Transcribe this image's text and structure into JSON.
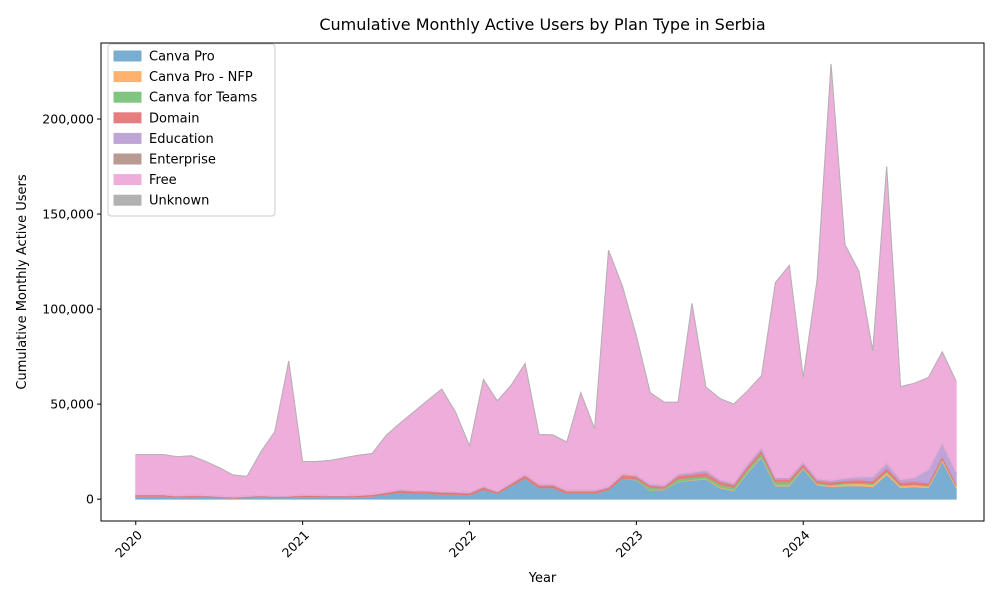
{
  "chart_data": {
    "type": "area",
    "stacked": true,
    "title": "Cumulative Monthly Active Users by Plan Type in Serbia",
    "xlabel": "Year",
    "ylabel": "Cumulative Monthly Active Users",
    "x_ticks": [
      "2020",
      "2021",
      "2022",
      "2023",
      "2024"
    ],
    "y_ticks": [
      "0",
      "50,000",
      "100,000",
      "150,000",
      "200,000"
    ],
    "y_tick_values": [
      0,
      50000,
      100000,
      150000,
      200000
    ],
    "ylim": [
      -11500,
      240000
    ],
    "xlim": [
      -2.5,
      61
    ],
    "grid": false,
    "legend_position": "top-left",
    "x": [
      "2020-01",
      "2020-02",
      "2020-03",
      "2020-04",
      "2020-05",
      "2020-06",
      "2020-07",
      "2020-08",
      "2020-09",
      "2020-10",
      "2020-11",
      "2020-12",
      "2021-01",
      "2021-02",
      "2021-03",
      "2021-04",
      "2021-05",
      "2021-06",
      "2021-07",
      "2021-08",
      "2021-09",
      "2021-10",
      "2021-11",
      "2021-12",
      "2022-01",
      "2022-02",
      "2022-03",
      "2022-04",
      "2022-05",
      "2022-06",
      "2022-07",
      "2022-08",
      "2022-09",
      "2022-10",
      "2022-11",
      "2022-12",
      "2023-01",
      "2023-02",
      "2023-03",
      "2023-04",
      "2023-05",
      "2023-06",
      "2023-07",
      "2023-08",
      "2023-09",
      "2023-10",
      "2023-11",
      "2023-12",
      "2024-01",
      "2024-02",
      "2024-03",
      "2024-04",
      "2024-05",
      "2024-06",
      "2024-07",
      "2024-08",
      "2024-09",
      "2024-10",
      "2024-11",
      "2024-12"
    ],
    "series": [
      {
        "name": "Canva Pro",
        "color": "#1f77b4",
        "values": [
          1500,
          1500,
          1500,
          1000,
          1200,
          1000,
          800,
          500,
          800,
          1000,
          800,
          800,
          1200,
          1200,
          1000,
          1000,
          1200,
          1500,
          2500,
          3500,
          3000,
          3000,
          2500,
          2500,
          2200,
          5000,
          3000,
          7000,
          11000,
          6000,
          6000,
          3000,
          3000,
          3000,
          5000,
          11000,
          10000,
          4500,
          5000,
          9000,
          10000,
          10500,
          6000,
          4500,
          14000,
          22000,
          7000,
          7000,
          16000,
          7500,
          6500,
          7000,
          7000,
          6500,
          13000,
          6000,
          6500,
          6000,
          20000,
          6000
        ]
      },
      {
        "name": "Canva Pro - NFP",
        "color": "#ff7f0e",
        "values": [
          0,
          0,
          0,
          0,
          0,
          0,
          0,
          0,
          0,
          0,
          0,
          0,
          0,
          0,
          0,
          0,
          0,
          0,
          0,
          0,
          0,
          0,
          0,
          0,
          0,
          0,
          0,
          0,
          0,
          0,
          0,
          0,
          0,
          0,
          0,
          0,
          100,
          200,
          200,
          200,
          300,
          300,
          400,
          400,
          500,
          500,
          500,
          500,
          500,
          500,
          700,
          1000,
          1200,
          1200,
          1200,
          1000,
          1000,
          800,
          800,
          800
        ]
      },
      {
        "name": "Canva for Teams",
        "color": "#2ca02c",
        "values": [
          0,
          0,
          0,
          0,
          0,
          0,
          0,
          0,
          0,
          0,
          0,
          0,
          0,
          0,
          0,
          0,
          0,
          0,
          0,
          0,
          0,
          0,
          0,
          0,
          0,
          0,
          0,
          0,
          0,
          0,
          0,
          0,
          0,
          0,
          0,
          0,
          500,
          1500,
          500,
          1500,
          1000,
          1200,
          1500,
          1200,
          1200,
          1500,
          1500,
          1500,
          500,
          500,
          500,
          500,
          500,
          500,
          500,
          300,
          300,
          300,
          300,
          200
        ]
      },
      {
        "name": "Domain",
        "color": "#d62728",
        "values": [
          700,
          700,
          700,
          600,
          700,
          700,
          600,
          500,
          600,
          700,
          600,
          700,
          700,
          700,
          700,
          700,
          700,
          800,
          900,
          1200,
          1200,
          1200,
          1100,
          1000,
          1000,
          1400,
          800,
          1200,
          1600,
          1400,
          1400,
          1300,
          1300,
          1300,
          1200,
          1800,
          1500,
          1000,
          1000,
          1600,
          1800,
          2000,
          1500,
          1500,
          1600,
          1800,
          1500,
          1500,
          1600,
          1300,
          1300,
          1300,
          1500,
          1500,
          1800,
          1500,
          1500,
          1500,
          1500,
          1300
        ]
      },
      {
        "name": "Education",
        "color": "#9467bd",
        "values": [
          200,
          200,
          200,
          200,
          200,
          200,
          200,
          200,
          200,
          200,
          200,
          200,
          200,
          200,
          200,
          200,
          200,
          200,
          300,
          300,
          300,
          300,
          300,
          300,
          300,
          300,
          300,
          400,
          400,
          400,
          400,
          400,
          400,
          400,
          400,
          500,
          500,
          600,
          600,
          800,
          1000,
          1200,
          800,
          800,
          1200,
          1200,
          900,
          900,
          900,
          900,
          900,
          1200,
          1500,
          2000,
          2500,
          1500,
          2000,
          7000,
          6500,
          5500
        ]
      },
      {
        "name": "Enterprise",
        "color": "#8c564b",
        "values": [
          0,
          0,
          0,
          0,
          0,
          0,
          0,
          0,
          0,
          0,
          0,
          0,
          0,
          0,
          0,
          0,
          0,
          0,
          0,
          0,
          0,
          0,
          0,
          0,
          0,
          0,
          0,
          0,
          0,
          0,
          0,
          0,
          0,
          0,
          0,
          0,
          0,
          0,
          0,
          0,
          0,
          0,
          0,
          0,
          0,
          0,
          0,
          0,
          0,
          0,
          0,
          0,
          0,
          0,
          0,
          0,
          0,
          0,
          200,
          200
        ]
      },
      {
        "name": "Free",
        "color": "#e377c2",
        "values": [
          21000,
          21000,
          21000,
          20500,
          20700,
          18000,
          15000,
          11500,
          10400,
          23000,
          34000,
          71000,
          17700,
          17700,
          18500,
          19900,
          21000,
          21500,
          29800,
          35000,
          41500,
          47500,
          54000,
          42000,
          24500,
          56300,
          47600,
          51400,
          58400,
          26200,
          26000,
          25300,
          51300,
          32300,
          124400,
          98700,
          73400,
          48200,
          43700,
          37900,
          88900,
          43800,
          42800,
          41600,
          38500,
          38000,
          102600,
          111600,
          44500,
          104800,
          219100,
          123000,
          108300,
          66300,
          156000,
          48900,
          49700,
          48400,
          48200,
          48000
        ]
      },
      {
        "name": "Unknown",
        "color": "#7f7f7f",
        "values": [
          0,
          0,
          0,
          0,
          0,
          0,
          0,
          0,
          0,
          0,
          0,
          0,
          0,
          0,
          0,
          0,
          0,
          0,
          0,
          0,
          0,
          0,
          0,
          0,
          0,
          0,
          0,
          0,
          0,
          0,
          0,
          0,
          0,
          0,
          0,
          0,
          0,
          0,
          0,
          0,
          0,
          0,
          0,
          0,
          0,
          0,
          0,
          0,
          0,
          0,
          0,
          0,
          0,
          0,
          0,
          0,
          0,
          0,
          0,
          0
        ]
      }
    ]
  }
}
